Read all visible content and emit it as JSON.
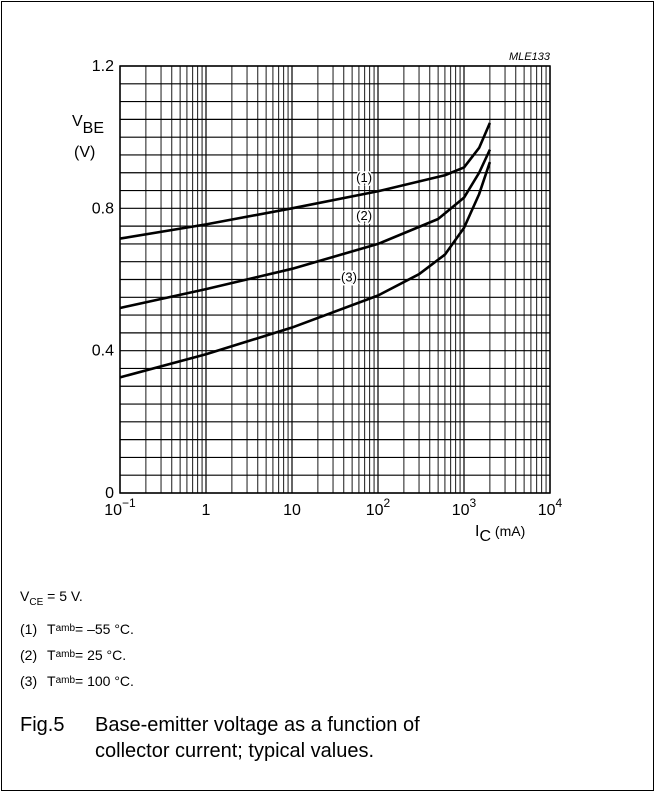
{
  "chart_data": {
    "type": "line",
    "code": "MLE133",
    "x_scale": "log",
    "xlim": [
      0.1,
      10000
    ],
    "ylim": [
      0,
      1.2
    ],
    "grid": true,
    "ylabel": {
      "main": "V",
      "sub": "BE",
      "unit": "(V)"
    },
    "xlabel": {
      "main": "I",
      "sub": "C",
      "unit": "(mA)"
    },
    "y_ticks": [
      {
        "value": 0,
        "label": "0"
      },
      {
        "value": 0.4,
        "label": "0.4"
      },
      {
        "value": 0.8,
        "label": "0.8"
      },
      {
        "value": 1.2,
        "label": "1.2"
      }
    ],
    "x_ticks": [
      {
        "value": 0.1,
        "label": "",
        "base": "10",
        "exp": "−1"
      },
      {
        "value": 1,
        "label": "1"
      },
      {
        "value": 10,
        "label": "10"
      },
      {
        "value": 100,
        "label": "",
        "base": "10",
        "exp": "2"
      },
      {
        "value": 1000,
        "label": "",
        "base": "10",
        "exp": "3"
      },
      {
        "value": 10000,
        "label": "",
        "base": "10",
        "exp": "4"
      }
    ],
    "series": [
      {
        "name": "(1)",
        "label_at": [
          450,
          0.885
        ],
        "points": [
          [
            0.1,
            0.715
          ],
          [
            1,
            0.755
          ],
          [
            10,
            0.8
          ],
          [
            100,
            0.848
          ],
          [
            600,
            0.893
          ],
          [
            1000,
            0.915
          ],
          [
            1500,
            0.97
          ],
          [
            2000,
            1.04
          ]
        ]
      },
      {
        "name": "(2)",
        "label_at": [
          450,
          0.778
        ],
        "points": [
          [
            0.1,
            0.52
          ],
          [
            1,
            0.573
          ],
          [
            10,
            0.63
          ],
          [
            100,
            0.7
          ],
          [
            500,
            0.77
          ],
          [
            1000,
            0.83
          ],
          [
            1500,
            0.9
          ],
          [
            2000,
            0.965
          ]
        ]
      },
      {
        "name": "(3)",
        "label_at": [
          300,
          0.605
        ],
        "points": [
          [
            0.1,
            0.325
          ],
          [
            1,
            0.39
          ],
          [
            10,
            0.465
          ],
          [
            100,
            0.555
          ],
          [
            300,
            0.615
          ],
          [
            600,
            0.67
          ],
          [
            1000,
            0.745
          ],
          [
            1500,
            0.84
          ],
          [
            2000,
            0.93
          ]
        ]
      }
    ]
  },
  "notes": {
    "vce": {
      "main": "V",
      "sub": "CE",
      "rest": " = 5 V."
    },
    "items": [
      {
        "num": "(1)",
        "main": "T",
        "sub": "amb",
        "rest": " = –55 °C."
      },
      {
        "num": "(2)",
        "main": "T",
        "sub": "amb",
        "rest": " = 25 °C."
      },
      {
        "num": "(3)",
        "main": "T",
        "sub": "amb",
        "rest": " = 100 °C."
      }
    ]
  },
  "caption": {
    "number": "Fig.5",
    "text": "Base-emitter voltage as a function of collector current; typical values."
  }
}
